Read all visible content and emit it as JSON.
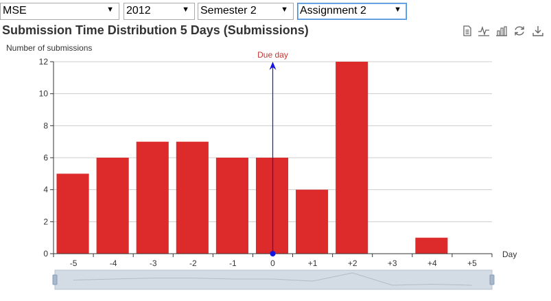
{
  "filters": {
    "school": "MSE",
    "year": "2012",
    "semester": "Semester 2",
    "assignment": "Assignment 2"
  },
  "toolbox": {
    "icons": [
      "data-view-icon",
      "line-chart-icon",
      "bar-chart-icon",
      "restore-icon",
      "download-icon"
    ]
  },
  "colors": {
    "bar": "#dd2a2a",
    "due_line": "#1414e0",
    "due_label": "#c23531",
    "zoom_bg": "#d3dce4"
  },
  "chart_data": {
    "type": "bar",
    "title": "Submission Time Distribution 5 Days (Submissions)",
    "ylabel": "Number of submissions",
    "xlabel": "Day",
    "categories": [
      "-5",
      "-4",
      "-3",
      "-2",
      "-1",
      "0",
      "+1",
      "+2",
      "+3",
      "+4",
      "+5"
    ],
    "values": [
      5,
      6,
      7,
      7,
      6,
      6,
      4,
      12,
      0,
      1,
      0
    ],
    "ylim": [
      0,
      12
    ],
    "yticks": [
      0,
      2,
      4,
      6,
      8,
      10,
      12
    ],
    "grid": true,
    "annotations": [
      {
        "text": "Due day",
        "x": "0"
      }
    ],
    "data_zoom": true
  }
}
